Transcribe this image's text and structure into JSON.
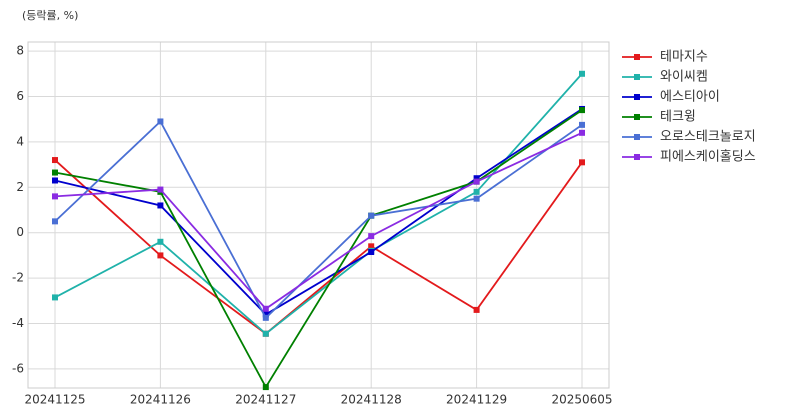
{
  "chart_data": {
    "type": "line",
    "ylabel": "(등락률, %)",
    "categories": [
      "20241125",
      "20241126",
      "20241127",
      "20241128",
      "20241129",
      "20250605"
    ],
    "series": [
      {
        "name": "테마지수",
        "color": "#e31a1c",
        "values": [
          3.2,
          -1.0,
          -4.45,
          -0.6,
          -3.4,
          3.1
        ]
      },
      {
        "name": "와이씨켐",
        "color": "#20b2aa",
        "values": [
          -2.85,
          -0.4,
          -4.45,
          -0.8,
          1.8,
          7.0
        ]
      },
      {
        "name": "에스티아이",
        "color": "#0000cd",
        "values": [
          2.3,
          1.2,
          -3.6,
          -0.85,
          2.4,
          5.45
        ]
      },
      {
        "name": "테크윙",
        "color": "#008000",
        "values": [
          2.65,
          1.8,
          -6.8,
          0.75,
          2.25,
          5.4
        ]
      },
      {
        "name": "오로스테크놀로지",
        "color": "#4a6fd4",
        "values": [
          0.5,
          4.9,
          -3.75,
          0.75,
          1.5,
          4.75
        ]
      },
      {
        "name": "피에스케이홀딩스",
        "color": "#8a2be2",
        "values": [
          1.6,
          1.9,
          -3.35,
          -0.15,
          2.25,
          4.4
        ]
      }
    ],
    "ylim": [
      -6.84,
      8.4
    ],
    "yticks": [
      -6,
      -4,
      -2,
      0,
      2,
      4,
      6,
      8
    ],
    "grid": true,
    "legend": "outside-right"
  }
}
